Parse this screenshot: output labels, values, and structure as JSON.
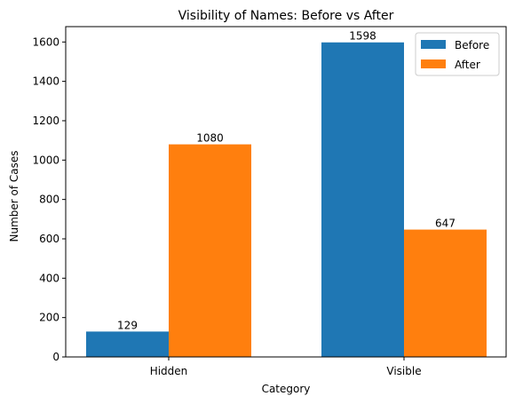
{
  "chart_data": {
    "type": "bar",
    "title": "Visibility of Names: Before vs After",
    "xlabel": "Category",
    "ylabel": "Number of Cases",
    "categories": [
      "Hidden",
      "Visible"
    ],
    "series": [
      {
        "name": "Before",
        "values": [
          129,
          1598
        ],
        "color": "#1f77b4"
      },
      {
        "name": "After",
        "values": [
          1080,
          647
        ],
        "color": "#ff7f0e"
      }
    ],
    "ylim": [
      0,
      1678
    ],
    "yticks": [
      0,
      200,
      400,
      600,
      800,
      1000,
      1200,
      1400,
      1600
    ],
    "grid": false,
    "legend_position": "top-right"
  }
}
